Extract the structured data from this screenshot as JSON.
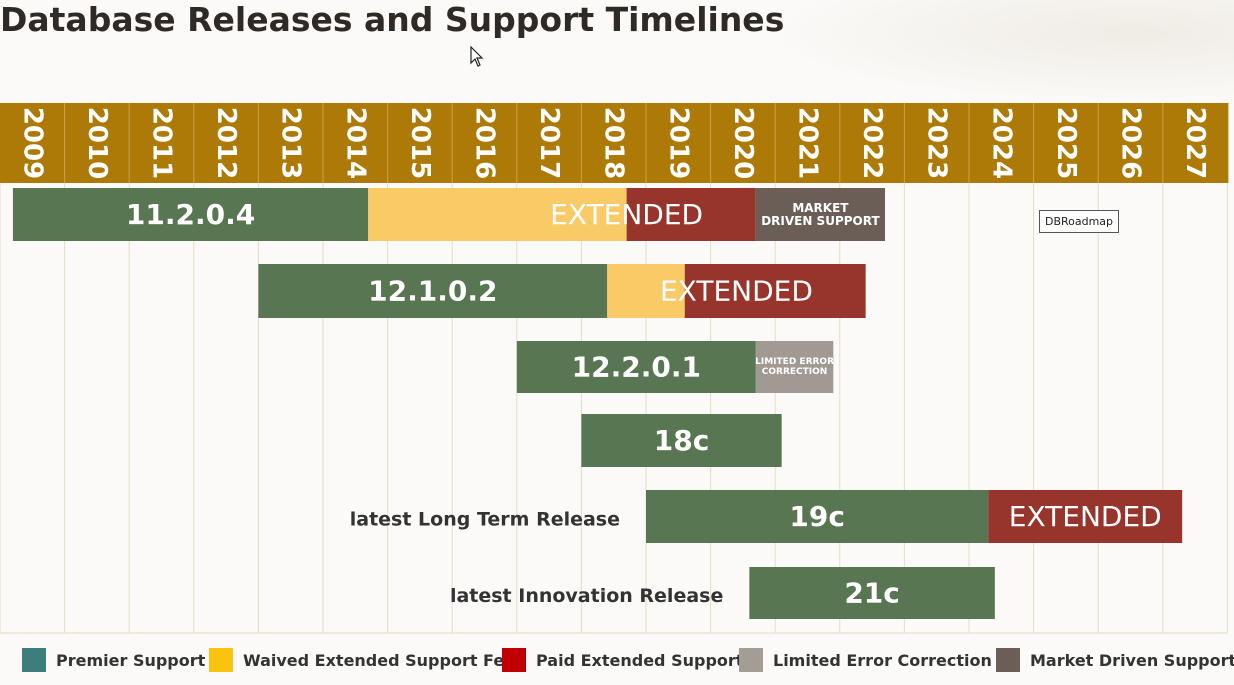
{
  "page": {
    "title": "Database Releases and Support Timelines",
    "tooltip": "DBRoadmap"
  },
  "colors": {
    "header": "#ad7a08",
    "premier": "#587651",
    "waived": "#f8cb67",
    "paid": "#97342b",
    "limited": "#a09a92",
    "market": "#6a5e57",
    "grid": "#e7dcc2"
  },
  "legend": [
    {
      "label": "Premier Support",
      "color": "#3d7e7a"
    },
    {
      "label": "Waived Extended Support Fee",
      "color": "#f9c40d"
    },
    {
      "label": "Paid Extended Support",
      "color": "#c00000"
    },
    {
      "label": "Limited Error Correction",
      "color": "#a39d95"
    },
    {
      "label": "Market Driven Support",
      "color": "#6a5e57"
    }
  ],
  "chart_data": {
    "type": "gantt",
    "title": "Database Releases and Support Timelines",
    "years": [
      "2009",
      "2010",
      "2011",
      "2012",
      "2013",
      "2014",
      "2015",
      "2016",
      "2017",
      "2018",
      "2019",
      "2020",
      "2021",
      "2022",
      "2023",
      "2024",
      "2025",
      "2026",
      "2027"
    ],
    "rows": [
      {
        "label": "",
        "segments": [
          {
            "kind": "premier",
            "start": 2009.2,
            "end": 2014.7,
            "text": "11.2.0.4"
          },
          {
            "kind": "waived",
            "start": 2014.7,
            "end": 2018.7,
            "text": ""
          },
          {
            "kind": "paid",
            "start": 2018.7,
            "end": 2020.7,
            "text": ""
          },
          {
            "kind": "market",
            "start": 2020.7,
            "end": 2022.7,
            "text": "MARKET DRIVEN SUPPORT"
          }
        ],
        "overlay": {
          "text": "EXTENDED",
          "start": 2016.7,
          "end": 2020.7
        }
      },
      {
        "label": "",
        "segments": [
          {
            "kind": "premier",
            "start": 2013.0,
            "end": 2018.4,
            "text": "12.1.0.2"
          },
          {
            "kind": "waived",
            "start": 2018.4,
            "end": 2019.6,
            "text": ""
          },
          {
            "kind": "paid",
            "start": 2019.6,
            "end": 2022.4,
            "text": ""
          }
        ],
        "overlay": {
          "text": "EXTENDED",
          "start": 2018.4,
          "end": 2022.4
        }
      },
      {
        "label": "",
        "segments": [
          {
            "kind": "premier",
            "start": 2017.0,
            "end": 2020.7,
            "text": "12.2.0.1"
          },
          {
            "kind": "limited",
            "start": 2020.7,
            "end": 2021.9,
            "text": "LIMITED ERROR CORRECTION"
          }
        ]
      },
      {
        "label": "",
        "segments": [
          {
            "kind": "premier",
            "start": 2018.0,
            "end": 2021.1,
            "text": "18c"
          }
        ]
      },
      {
        "label": "latest Long Term Release",
        "segments": [
          {
            "kind": "premier",
            "start": 2019.0,
            "end": 2024.3,
            "text": "19c"
          },
          {
            "kind": "paid",
            "start": 2024.3,
            "end": 2027.3,
            "text": "EXTENDED"
          }
        ]
      },
      {
        "label": "latest Innovation Release",
        "segments": [
          {
            "kind": "premier",
            "start": 2020.6,
            "end": 2024.4,
            "text": "21c"
          }
        ]
      }
    ]
  }
}
